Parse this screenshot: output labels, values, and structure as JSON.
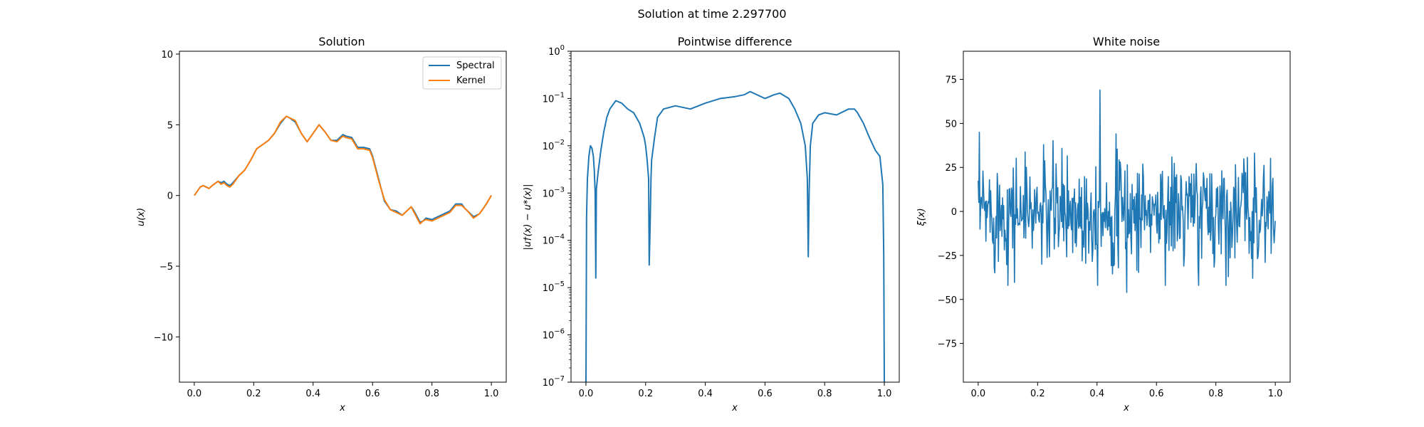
{
  "figure": {
    "suptitle": "Solution at time 2.297700"
  },
  "colors": {
    "spectral": "#1f77b4",
    "kernel": "#ff7f0e",
    "line": "#1f77b4"
  },
  "chart_data": [
    {
      "type": "line",
      "title": "Solution",
      "xlabel": "x",
      "ylabel": "u(x)",
      "xlim": [
        -0.05,
        1.05
      ],
      "ylim": [
        -13.2,
        10.2
      ],
      "xticks": [
        0.0,
        0.2,
        0.4,
        0.6,
        0.8,
        1.0
      ],
      "xtick_labels": [
        "0.0",
        "0.2",
        "0.4",
        "0.6",
        "0.8",
        "1.0"
      ],
      "yticks": [
        10,
        5,
        0,
        -5,
        -10
      ],
      "ytick_labels": [
        "10",
        "5",
        "0",
        "−5",
        "−10"
      ],
      "legend": {
        "placement": "top-right",
        "entries": [
          "Spectral",
          "Kernel"
        ]
      },
      "x": [
        0.0,
        0.02,
        0.03,
        0.05,
        0.06,
        0.08,
        0.09,
        0.1,
        0.11,
        0.12,
        0.13,
        0.15,
        0.17,
        0.19,
        0.21,
        0.23,
        0.25,
        0.27,
        0.29,
        0.31,
        0.32,
        0.34,
        0.36,
        0.38,
        0.4,
        0.42,
        0.44,
        0.46,
        0.48,
        0.5,
        0.51,
        0.53,
        0.55,
        0.57,
        0.59,
        0.6,
        0.62,
        0.64,
        0.66,
        0.68,
        0.7,
        0.71,
        0.72,
        0.73,
        0.74,
        0.75,
        0.76,
        0.77,
        0.78,
        0.8,
        0.82,
        0.84,
        0.86,
        0.88,
        0.9,
        0.91,
        0.92,
        0.94,
        0.96,
        0.98,
        1.0
      ],
      "series": [
        {
          "name": "Spectral",
          "values": [
            0.0,
            0.6,
            0.7,
            0.5,
            0.7,
            1.0,
            0.9,
            1.0,
            0.8,
            0.7,
            0.9,
            1.4,
            1.8,
            2.5,
            3.3,
            3.6,
            3.9,
            4.4,
            5.1,
            5.6,
            5.5,
            5.2,
            4.4,
            3.8,
            4.4,
            5.0,
            4.5,
            3.9,
            3.9,
            4.3,
            4.2,
            4.1,
            3.4,
            3.4,
            3.3,
            2.8,
            1.2,
            -0.4,
            -1.0,
            -1.1,
            -1.4,
            -1.2,
            -1.0,
            -0.8,
            -1.1,
            -1.5,
            -1.9,
            -1.8,
            -1.6,
            -1.7,
            -1.5,
            -1.3,
            -1.1,
            -0.6,
            -0.6,
            -0.9,
            -1.1,
            -1.5,
            -1.3,
            -0.7,
            0.0
          ]
        },
        {
          "name": "Kernel",
          "values": [
            0.0,
            0.6,
            0.7,
            0.5,
            0.7,
            1.0,
            0.8,
            0.9,
            0.7,
            0.6,
            0.8,
            1.4,
            1.8,
            2.5,
            3.3,
            3.6,
            3.9,
            4.4,
            5.2,
            5.6,
            5.5,
            5.3,
            4.4,
            3.8,
            4.4,
            5.0,
            4.5,
            3.9,
            3.8,
            4.2,
            4.1,
            4.0,
            3.3,
            3.3,
            3.2,
            2.7,
            1.1,
            -0.3,
            -1.0,
            -1.2,
            -1.4,
            -1.2,
            -1.0,
            -0.8,
            -1.2,
            -1.6,
            -2.0,
            -1.8,
            -1.7,
            -1.8,
            -1.6,
            -1.4,
            -1.2,
            -0.7,
            -0.7,
            -0.9,
            -1.1,
            -1.6,
            -1.3,
            -0.7,
            0.0
          ]
        }
      ]
    },
    {
      "type": "line",
      "title": "Pointwise difference",
      "xlabel": "x",
      "ylabel": "|u†(x) − u*(x)|",
      "yscale": "log",
      "xlim": [
        -0.05,
        1.05
      ],
      "ylim": [
        1e-07,
        1.0
      ],
      "xticks": [
        0.0,
        0.2,
        0.4,
        0.6,
        0.8,
        1.0
      ],
      "xtick_labels": [
        "0.0",
        "0.2",
        "0.4",
        "0.6",
        "0.8",
        "1.0"
      ],
      "yticks": [
        1e-07,
        1e-06,
        1e-05,
        0.0001,
        0.001,
        0.01,
        0.1,
        1.0
      ],
      "ytick_base": "10",
      "ytick_exponents": [
        "−7",
        "−6",
        "−5",
        "−4",
        "−3",
        "−2",
        "−1",
        "0"
      ],
      "x": [
        0.0,
        0.002,
        0.005,
        0.01,
        0.015,
        0.02,
        0.025,
        0.028,
        0.031,
        0.033,
        0.035,
        0.04,
        0.05,
        0.06,
        0.07,
        0.08,
        0.1,
        0.12,
        0.14,
        0.16,
        0.18,
        0.195,
        0.2,
        0.205,
        0.21,
        0.212,
        0.215,
        0.218,
        0.22,
        0.23,
        0.24,
        0.26,
        0.3,
        0.35,
        0.4,
        0.45,
        0.5,
        0.53,
        0.55,
        0.6,
        0.63,
        0.65,
        0.68,
        0.7,
        0.72,
        0.735,
        0.742,
        0.745,
        0.748,
        0.752,
        0.76,
        0.78,
        0.8,
        0.84,
        0.88,
        0.9,
        0.91,
        0.93,
        0.95,
        0.97,
        0.985,
        0.995,
        0.998,
        1.0
      ],
      "series": [
        {
          "name": "",
          "values": [
            1e-07,
            0.0003,
            0.002,
            0.006,
            0.01,
            0.009,
            0.006,
            0.003,
            0.001,
            1.6e-05,
            0.0012,
            0.0025,
            0.008,
            0.02,
            0.04,
            0.06,
            0.09,
            0.08,
            0.06,
            0.05,
            0.03,
            0.015,
            0.01,
            0.005,
            0.002,
            3e-05,
            0.0002,
            0.002,
            0.005,
            0.015,
            0.04,
            0.06,
            0.07,
            0.06,
            0.08,
            0.1,
            0.11,
            0.12,
            0.14,
            0.1,
            0.12,
            0.13,
            0.1,
            0.06,
            0.03,
            0.01,
            0.002,
            4.5e-05,
            0.001,
            0.01,
            0.03,
            0.045,
            0.05,
            0.045,
            0.06,
            0.06,
            0.05,
            0.03,
            0.015,
            0.008,
            0.006,
            0.0015,
            5e-05,
            1e-07
          ]
        }
      ]
    },
    {
      "type": "line",
      "title": "White noise",
      "xlabel": "x",
      "ylabel": "ξ(x)",
      "xlim": [
        -0.05,
        1.05
      ],
      "ylim": [
        -97,
        91
      ],
      "xticks": [
        0.0,
        0.2,
        0.4,
        0.6,
        0.8,
        1.0
      ],
      "xtick_labels": [
        "0.0",
        "0.2",
        "0.4",
        "0.6",
        "0.8",
        "1.0"
      ],
      "yticks": [
        75,
        50,
        25,
        0,
        -25,
        -50,
        -75
      ],
      "ytick_labels": [
        "75",
        "50",
        "25",
        "0",
        "−25",
        "−50",
        "−75"
      ],
      "noise": {
        "n_points": 500,
        "mean": 0,
        "std": 16,
        "min": -46,
        "max": 69,
        "spike_at": 0.41,
        "spike_value": 69,
        "dip_at": 0.5,
        "dip_value": -46
      }
    }
  ]
}
